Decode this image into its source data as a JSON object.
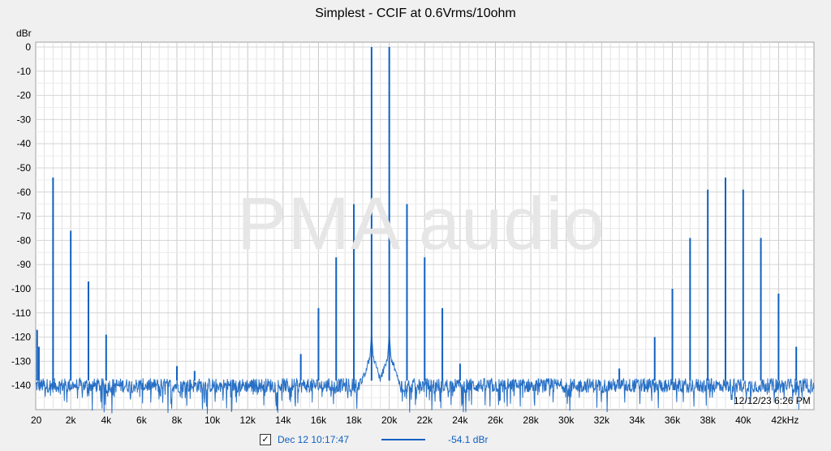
{
  "chart_data": {
    "type": "line",
    "title": "Simplest - CCIF at 0.6Vrms/10ohm",
    "ylabel": "dBr",
    "ylim": [
      -150,
      2
    ],
    "xlim": [
      20,
      44000
    ],
    "x_ticks": [
      {
        "value": 20,
        "label": "20"
      },
      {
        "value": 2000,
        "label": "2k"
      },
      {
        "value": 4000,
        "label": "4k"
      },
      {
        "value": 6000,
        "label": "6k"
      },
      {
        "value": 8000,
        "label": "8k"
      },
      {
        "value": 10000,
        "label": "10k"
      },
      {
        "value": 12000,
        "label": "12k"
      },
      {
        "value": 14000,
        "label": "14k"
      },
      {
        "value": 16000,
        "label": "16k"
      },
      {
        "value": 18000,
        "label": "18k"
      },
      {
        "value": 20000,
        "label": "20k"
      },
      {
        "value": 22000,
        "label": "22k"
      },
      {
        "value": 24000,
        "label": "24k"
      },
      {
        "value": 26000,
        "label": "26k"
      },
      {
        "value": 28000,
        "label": "28k"
      },
      {
        "value": 30000,
        "label": "30k"
      },
      {
        "value": 32000,
        "label": "32k"
      },
      {
        "value": 34000,
        "label": "34k"
      },
      {
        "value": 36000,
        "label": "36k"
      },
      {
        "value": 38000,
        "label": "38k"
      },
      {
        "value": 40000,
        "label": "40k"
      },
      {
        "value": 42000,
        "label": "42kHz"
      }
    ],
    "y_ticks": [
      0,
      -10,
      -20,
      -30,
      -40,
      -50,
      -60,
      -70,
      -80,
      -90,
      -100,
      -110,
      -120,
      -130,
      -140
    ],
    "grid": true,
    "noise_floor_db": -140,
    "series": [
      {
        "name": "Dec 12 10:17:47",
        "color": "#1060c0",
        "value_label": "-54.1 dBr",
        "peaks": [
          {
            "x": 100,
            "y": -117
          },
          {
            "x": 200,
            "y": -124
          },
          {
            "x": 1000,
            "y": -54
          },
          {
            "x": 2000,
            "y": -76
          },
          {
            "x": 3000,
            "y": -97
          },
          {
            "x": 4000,
            "y": -119
          },
          {
            "x": 8000,
            "y": -132
          },
          {
            "x": 9000,
            "y": -134
          },
          {
            "x": 15000,
            "y": -127
          },
          {
            "x": 16000,
            "y": -108
          },
          {
            "x": 17000,
            "y": -87
          },
          {
            "x": 18000,
            "y": -65
          },
          {
            "x": 19000,
            "y": 0
          },
          {
            "x": 20000,
            "y": 0
          },
          {
            "x": 21000,
            "y": -65
          },
          {
            "x": 22000,
            "y": -87
          },
          {
            "x": 23000,
            "y": -108
          },
          {
            "x": 24000,
            "y": -131
          },
          {
            "x": 33000,
            "y": -133
          },
          {
            "x": 35000,
            "y": -120
          },
          {
            "x": 36000,
            "y": -100
          },
          {
            "x": 37000,
            "y": -79
          },
          {
            "x": 38000,
            "y": -59
          },
          {
            "x": 39000,
            "y": -54
          },
          {
            "x": 40000,
            "y": -59
          },
          {
            "x": 41000,
            "y": -79
          },
          {
            "x": 42000,
            "y": -102
          },
          {
            "x": 43000,
            "y": -124
          }
        ]
      }
    ]
  },
  "watermark": "PMA audio",
  "timestamp": "12/12/23 6:26 PM",
  "legend": {
    "checked_glyph": "✓",
    "label": "Dec 12 10:17:47",
    "value": "-54.1 dBr"
  }
}
